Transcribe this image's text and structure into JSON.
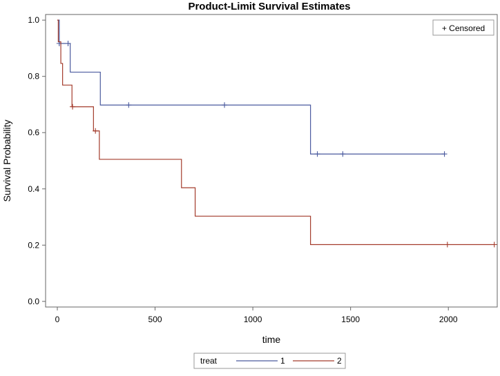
{
  "chart_data": {
    "type": "line",
    "title": "Product-Limit Survival Estimates",
    "xlabel": "time",
    "ylabel": "Survival Probability",
    "xlim": [
      -60,
      2250
    ],
    "ylim": [
      -0.02,
      1.02
    ],
    "x_ticks": [
      0,
      500,
      1000,
      1500,
      2000
    ],
    "y_ticks": [
      0.0,
      0.2,
      0.4,
      0.6,
      0.8,
      1.0
    ],
    "y_tick_labels": [
      "0.0",
      "0.2",
      "0.4",
      "0.6",
      "0.8",
      "1.0"
    ],
    "censor_legend": "+ Censored",
    "legend_title": "treat",
    "legend_position": "bottom",
    "series": [
      {
        "name": "1",
        "color": "#4a5a9e",
        "steps": [
          [
            0,
            1.0
          ],
          [
            10,
            0.917
          ],
          [
            66,
            0.815
          ],
          [
            220,
            0.698
          ],
          [
            1295,
            0.524
          ],
          [
            1980,
            0.524
          ]
        ],
        "censored": [
          [
            10,
            0.917
          ],
          [
            55,
            0.917
          ],
          [
            365,
            0.698
          ],
          [
            855,
            0.698
          ],
          [
            1330,
            0.524
          ],
          [
            1460,
            0.524
          ],
          [
            1980,
            0.524
          ]
        ]
      },
      {
        "name": "2",
        "color": "#a33a2a",
        "steps": [
          [
            0,
            1.0
          ],
          [
            5,
            0.923
          ],
          [
            18,
            0.846
          ],
          [
            27,
            0.769
          ],
          [
            75,
            0.692
          ],
          [
            185,
            0.606
          ],
          [
            215,
            0.505
          ],
          [
            635,
            0.404
          ],
          [
            705,
            0.303
          ],
          [
            1295,
            0.202
          ],
          [
            2235,
            0.202
          ]
        ],
        "censored": [
          [
            78,
            0.692
          ],
          [
            195,
            0.606
          ],
          [
            1995,
            0.202
          ],
          [
            2235,
            0.202
          ]
        ]
      }
    ]
  }
}
